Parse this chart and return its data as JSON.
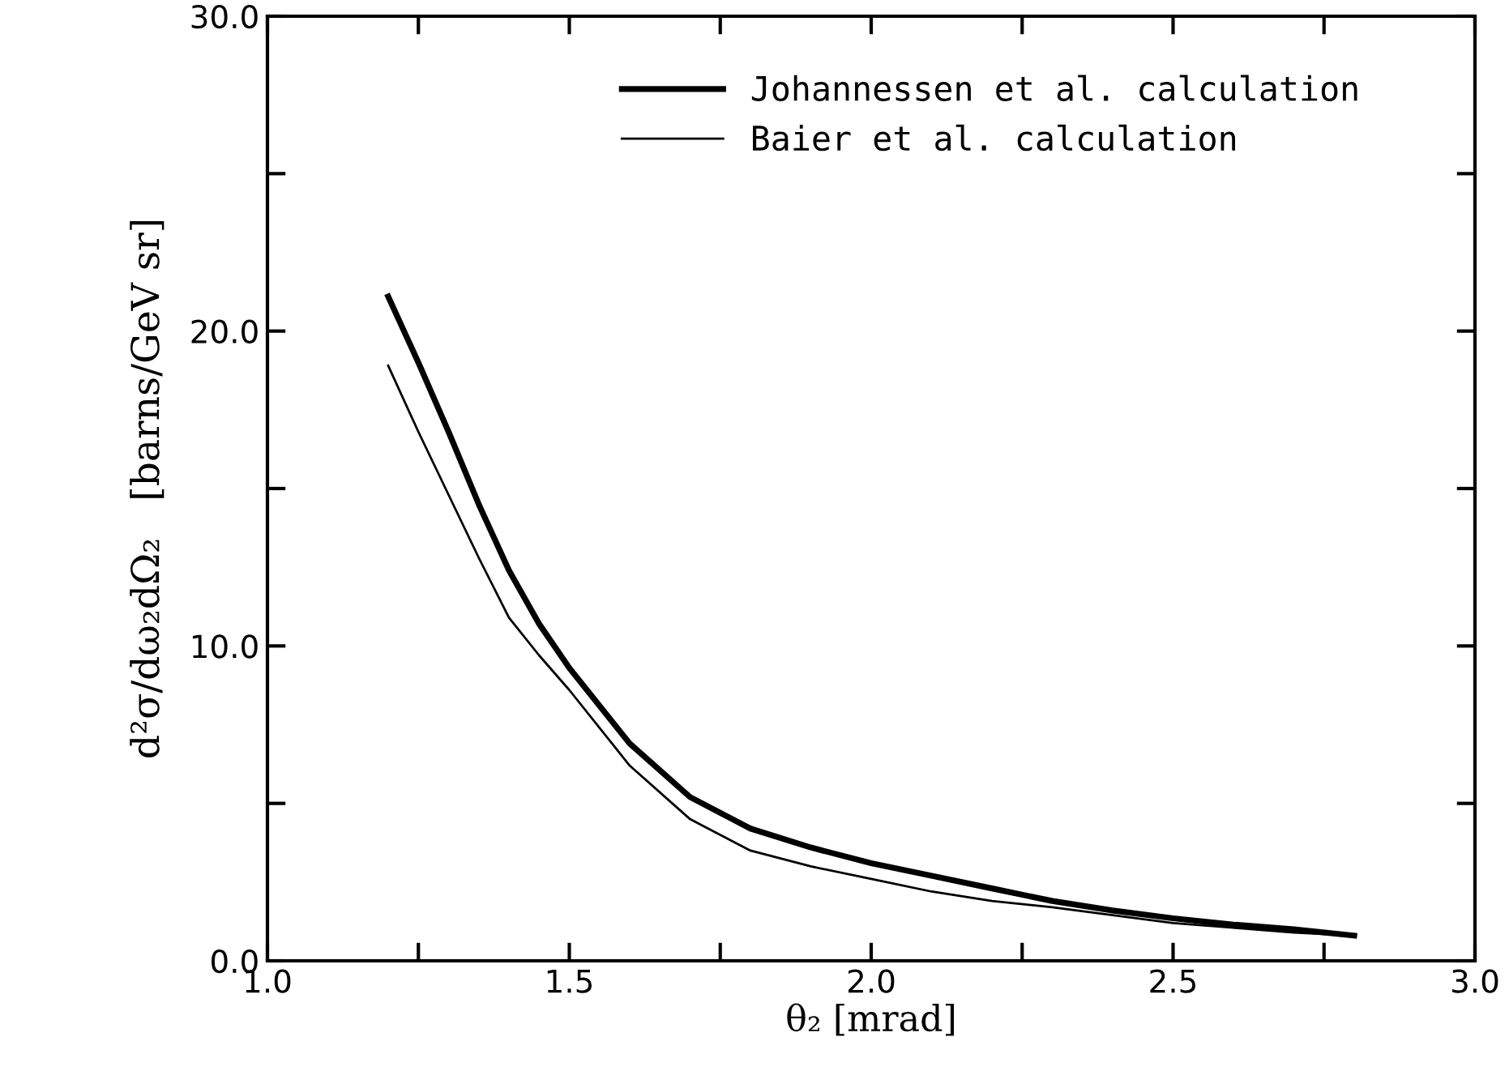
{
  "chart_data": {
    "type": "line",
    "xlabel": "θ₂ [mrad]",
    "ylabel": "d²σ/dω₂dΩ₂   [barns/GeV sr]",
    "x": [
      1.2,
      1.25,
      1.3,
      1.35,
      1.4,
      1.45,
      1.5,
      1.6,
      1.7,
      1.8,
      1.9,
      2.0,
      2.1,
      2.2,
      2.3,
      2.4,
      2.5,
      2.6,
      2.7,
      2.8
    ],
    "series": [
      {
        "name": "Johannessen et al. calculation",
        "color": "#000000",
        "values": [
          21.1,
          19.0,
          16.8,
          14.5,
          12.4,
          10.7,
          9.3,
          6.9,
          5.2,
          4.2,
          3.6,
          3.1,
          2.7,
          2.3,
          1.9,
          1.6,
          1.35,
          1.15,
          1.0,
          0.8
        ]
      },
      {
        "name": "Baier et al. calculation",
        "color": "#000000",
        "values": [
          18.9,
          16.8,
          14.8,
          12.8,
          10.9,
          9.7,
          8.6,
          6.2,
          4.5,
          3.5,
          3.0,
          2.6,
          2.2,
          1.9,
          1.7,
          1.45,
          1.2,
          1.05,
          0.9,
          0.8
        ]
      }
    ],
    "xlim": [
      1.0,
      3.0
    ],
    "ylim": [
      0.0,
      30.0
    ],
    "xticks": [
      {
        "value": 1.0,
        "label": "1.0"
      },
      {
        "value": 1.25,
        "label": null
      },
      {
        "value": 1.5,
        "label": "1.5"
      },
      {
        "value": 1.75,
        "label": null
      },
      {
        "value": 2.0,
        "label": "2.0"
      },
      {
        "value": 2.25,
        "label": null
      },
      {
        "value": 2.5,
        "label": "2.5"
      },
      {
        "value": 2.75,
        "label": null
      },
      {
        "value": 3.0,
        "label": "3.0"
      }
    ],
    "yticks": [
      {
        "value": 0,
        "label": "0.0"
      },
      {
        "value": 5,
        "label": null
      },
      {
        "value": 10,
        "label": "10.0"
      },
      {
        "value": 15,
        "label": null
      },
      {
        "value": 20,
        "label": "20.0"
      },
      {
        "value": 25,
        "label": null
      },
      {
        "value": 30,
        "label": "30.0"
      }
    ],
    "grid": false,
    "legend": "top right",
    "marker": "none",
    "line_style": "solid"
  }
}
